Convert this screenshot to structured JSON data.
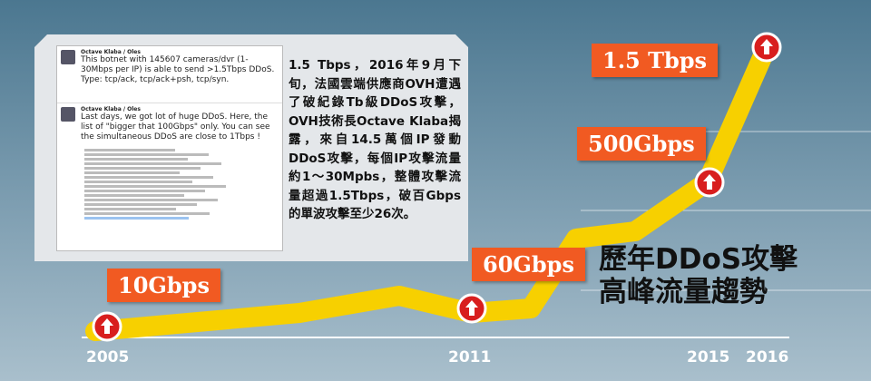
{
  "title": [
    "歷年DDoS攻擊",
    "高峰流量趨勢"
  ],
  "milestones": [
    {
      "year": "2005",
      "label": "10Gbps"
    },
    {
      "year": "2011",
      "label": "60Gbps"
    },
    {
      "year": "2015",
      "label": "500Gbps"
    },
    {
      "year": "2016",
      "label": "1.5 Tbps"
    }
  ],
  "note": "1.5 Tbps，2016年9月下旬，法國雲端供應商OVH遭遇了破紀錄Tb級DDoS攻擊，OVH技術長Octave Klaba揭露，來自14.5萬個IP發動DDoS攻擊，每個IP攻擊流量約1～30Mpbs，整體攻擊流量超過1.5Tbps，破百Gbps的單波攻擊至少26次。",
  "tweets": [
    {
      "author": "Octave Klaba / Oles",
      "text": "This botnet with 145607 cameras/dvr (1-30Mbps per IP) is able to send >1.5Tbps DDoS. Type: tcp/ack, tcp/ack+psh, tcp/syn."
    },
    {
      "author": "Octave Klaba / Oles",
      "text": "Last days, we got lot of huge DDoS. Here, the list of \"bigger that 100Gbps\" only. You can see the simultaneous DDoS are close to 1Tbps !"
    }
  ]
}
